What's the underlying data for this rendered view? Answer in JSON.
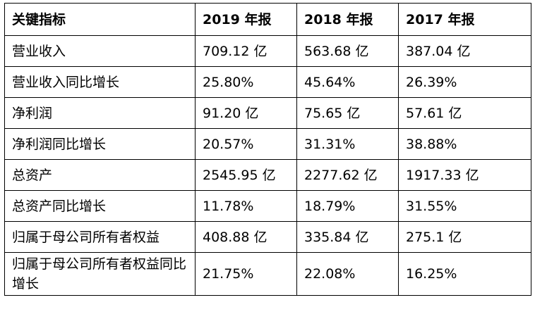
{
  "table": {
    "headers": [
      "关键指标",
      "2019 年报",
      "2018 年报",
      "2017 年报"
    ],
    "rows": [
      [
        "营业收入",
        "709.12 亿",
        "563.68 亿",
        "387.04 亿"
      ],
      [
        "营业收入同比增长",
        "25.80%",
        "45.64%",
        "26.39%"
      ],
      [
        "净利润",
        "91.20 亿",
        "75.65 亿",
        "57.61 亿"
      ],
      [
        "净利润同比增长",
        "20.57%",
        "31.31%",
        "38.88%"
      ],
      [
        "总资产",
        "2545.95 亿",
        "2277.62 亿",
        "1917.33 亿"
      ],
      [
        "总资产同比增长",
        "11.78%",
        "18.79%",
        "31.55%"
      ],
      [
        "归属于母公司所有者权益",
        "408.88 亿",
        "335.84 亿",
        "275.1 亿"
      ],
      [
        "归属于母公司所有者权益同比增长",
        "21.75%",
        "22.08%",
        "16.25%"
      ]
    ]
  }
}
